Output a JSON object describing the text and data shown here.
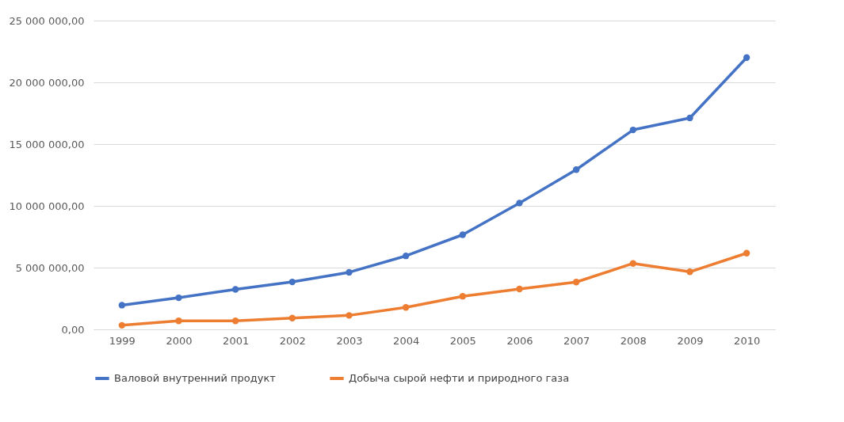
{
  "chart_data": {
    "type": "line",
    "categories": [
      "1999",
      "2000",
      "2001",
      "2002",
      "2003",
      "2004",
      "2005",
      "2006",
      "2007",
      "2008",
      "2009",
      "2010"
    ],
    "series": [
      {
        "name": "Валовой внутренний продукт",
        "color": "#4472c4",
        "values": [
          1960000,
          2560000,
          3240000,
          3840000,
          4620000,
          5950000,
          7660000,
          10230000,
          12930000,
          16150000,
          17120000,
          22000000
        ]
      },
      {
        "name": "Добыча сырой нефти и природного газа",
        "color": "#ed7d31",
        "values": [
          330000,
          690000,
          690000,
          910000,
          1130000,
          1780000,
          2680000,
          3270000,
          3830000,
          5340000,
          4660000,
          6170000
        ]
      }
    ],
    "ylim": [
      0,
      25000000
    ],
    "yticks": [
      {
        "value": 0,
        "label": "0,00"
      },
      {
        "value": 5000000,
        "label": "5 000 000,00"
      },
      {
        "value": 10000000,
        "label": "10 000 000,00"
      },
      {
        "value": 15000000,
        "label": "15 000 000,00"
      },
      {
        "value": 20000000,
        "label": "20 000 000,00"
      },
      {
        "value": 25000000,
        "label": "25 000 000,00"
      }
    ],
    "grid": "y",
    "legend": "bottom",
    "marker": "circle",
    "line_style": "solid"
  }
}
